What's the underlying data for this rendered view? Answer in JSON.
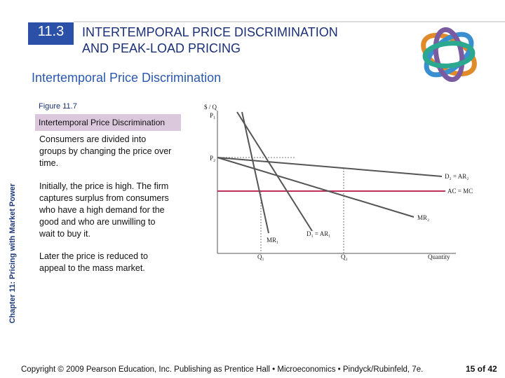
{
  "header": {
    "section": "11.3",
    "title": [
      "INTERTEMPORAL PRICE DISCRIMINATION",
      "AND PEAK-LOAD PRICING"
    ]
  },
  "subtitle": "Intertemporal Price Discrimination",
  "figure": {
    "label": "Figure 11.7",
    "title": "Intertemporal Price Discrimination",
    "paragraphs": [
      "Consumers are divided into groups by changing the price over time.",
      "Initially, the price is high. The firm captures surplus from consumers who have a high demand for the good and who are unwilling to wait to buy it.",
      "Later the price is reduced to appeal to the mass market."
    ]
  },
  "diagram": {
    "y_axis": "$ / Q",
    "p1": "P₁",
    "p2": "P₂",
    "d2": "D₂ = AR₂",
    "ac": "AC = MC",
    "mr2": "MR₂",
    "d1": "D₁ = AR₁",
    "mr1": "MR₁",
    "q1": "Q₁",
    "q2": "Q₂",
    "x_axis": "Quantity"
  },
  "sidebar": "Chapter 11: Pricing with Market Power",
  "footer": {
    "copyright": "Copyright © 2009 Pearson Education, Inc. Publishing as Prentice Hall • Microeconomics • Pindyck/Rubinfeld, 7e.",
    "page": "15 of 42"
  }
}
